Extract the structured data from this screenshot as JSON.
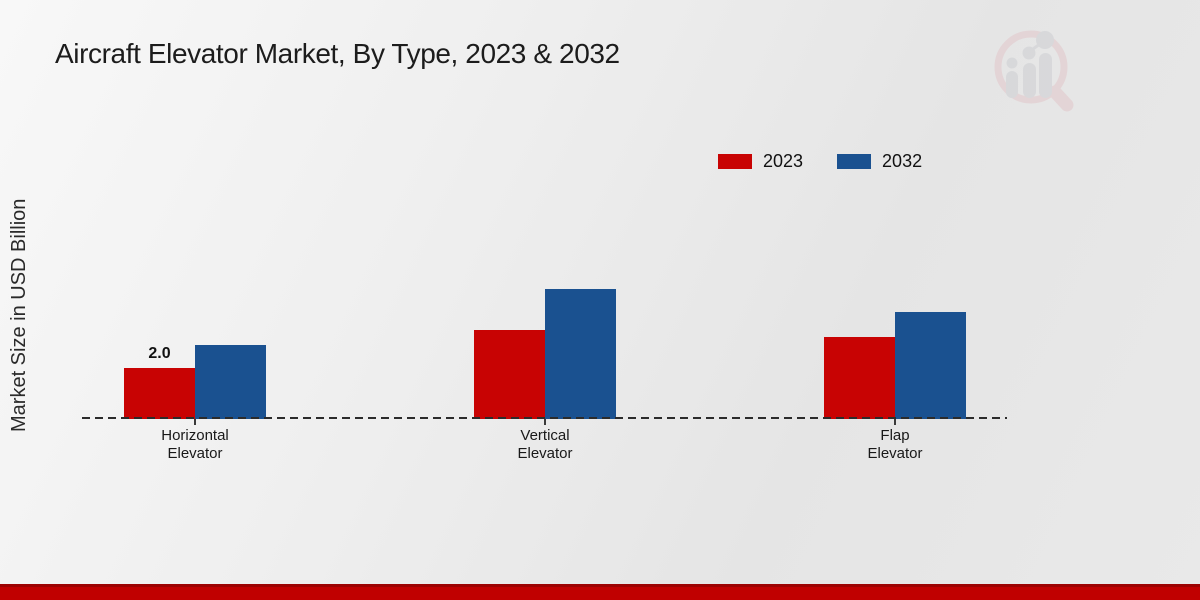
{
  "title": "Aircraft Elevator Market, By Type, 2023 & 2032",
  "y_axis_label": "Market Size in USD Billion",
  "chart_data": {
    "type": "bar",
    "title": "Aircraft Elevator Market, By Type, 2023 & 2032",
    "xlabel": "",
    "ylabel": "Market Size in USD Billion",
    "categories": [
      "Horizontal Elevator",
      "Vertical Elevator",
      "Flap Elevator"
    ],
    "series": [
      {
        "name": "2023",
        "color": "#c80303",
        "values": [
          2.0,
          3.5,
          3.2
        ]
      },
      {
        "name": "2032",
        "color": "#1a5190",
        "values": [
          2.9,
          5.1,
          4.2
        ]
      }
    ],
    "bar_labels": [
      {
        "series_index": 0,
        "category_index": 0,
        "text": "2.0"
      }
    ],
    "ylim": [
      0,
      6
    ],
    "grid": false,
    "legend_position": "top-right",
    "baseline_style": "dashed"
  },
  "footer": {
    "band_color": "#c00000",
    "band_edge_color": "#9c0202"
  },
  "watermark": {
    "name": "magnifier-bar-chart-logo",
    "ring_color": "#e2c4c8",
    "bars_color": "#cbccd1"
  }
}
